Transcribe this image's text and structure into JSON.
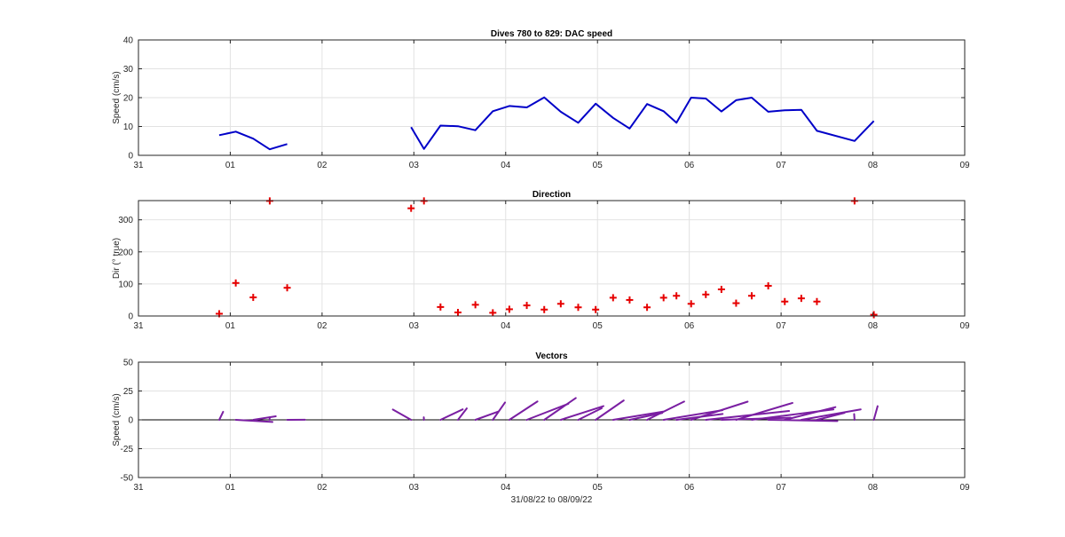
{
  "chart_data": [
    {
      "type": "line",
      "title": "Dives 780 to 829: DAC speed",
      "ylabel": "Speed (cm/s)",
      "xlabel": "",
      "xlim": [
        0,
        9
      ],
      "ylim": [
        0,
        40
      ],
      "xticks": [
        0,
        1,
        2,
        3,
        4,
        5,
        6,
        7,
        8,
        9
      ],
      "xtick_labels": [
        "31",
        "01",
        "02",
        "03",
        "04",
        "05",
        "06",
        "07",
        "08",
        "09"
      ],
      "yticks": [
        0,
        10,
        20,
        30,
        40
      ],
      "ytick_labels": [
        "0",
        "10",
        "20",
        "30",
        "40"
      ],
      "grid": true,
      "color": "#0000c8",
      "segments": [
        {
          "x": [
            0.88,
            1.06,
            1.25,
            1.43,
            1.62
          ],
          "y": [
            7.0,
            8.2,
            5.8,
            2.1,
            3.9
          ]
        },
        {
          "x": [
            2.97,
            3.11,
            3.29,
            3.48,
            3.67,
            3.86,
            4.04,
            4.23,
            4.42,
            4.6,
            4.79,
            4.98,
            5.17,
            5.35,
            5.54,
            5.72,
            5.86,
            6.02,
            6.18,
            6.35,
            6.51,
            6.68,
            6.86,
            7.04,
            7.22,
            7.39,
            7.8,
            8.01
          ],
          "y": [
            9.8,
            2.2,
            10.3,
            10.1,
            8.7,
            15.3,
            17.1,
            16.6,
            20.1,
            15.1,
            11.3,
            17.9,
            13.0,
            9.3,
            17.8,
            15.3,
            11.3,
            20.0,
            19.7,
            15.2,
            19.1,
            20.0,
            15.1,
            15.6,
            15.8,
            8.5,
            5.0,
            11.9
          ]
        }
      ]
    },
    {
      "type": "scatter",
      "title": "Direction",
      "ylabel": "Dir (° true)",
      "xlabel": "",
      "xlim": [
        0,
        9
      ],
      "ylim": [
        0,
        360
      ],
      "xticks": [
        0,
        1,
        2,
        3,
        4,
        5,
        6,
        7,
        8,
        9
      ],
      "xtick_labels": [
        "31",
        "01",
        "02",
        "03",
        "04",
        "05",
        "06",
        "07",
        "08",
        "09"
      ],
      "yticks": [
        0,
        100,
        200,
        300
      ],
      "ytick_labels": [
        "0",
        "100",
        "200",
        "300"
      ],
      "grid": true,
      "color": "#e60000",
      "marker": "+",
      "x": [
        0.88,
        1.06,
        1.25,
        1.43,
        1.62,
        2.97,
        3.11,
        3.29,
        3.48,
        3.67,
        3.86,
        4.04,
        4.23,
        4.42,
        4.6,
        4.79,
        4.98,
        5.17,
        5.35,
        5.54,
        5.72,
        5.86,
        6.02,
        6.18,
        6.35,
        6.51,
        6.68,
        6.86,
        7.04,
        7.22,
        7.39,
        7.8,
        8.01
      ],
      "y": [
        7,
        103,
        58,
        359,
        88,
        336,
        359,
        28,
        11,
        35,
        10,
        21,
        33,
        20,
        38,
        27,
        20,
        57,
        50,
        27,
        57,
        63,
        38,
        67,
        83,
        40,
        63,
        94,
        45,
        55,
        45,
        359,
        4
      ]
    },
    {
      "type": "vector",
      "title": "Vectors",
      "ylabel": "Speed (cm/s)",
      "xlabel": "31/08/22 to 08/09/22",
      "xlim": [
        0,
        9
      ],
      "ylim": [
        -50,
        50
      ],
      "xticks": [
        0,
        1,
        2,
        3,
        4,
        5,
        6,
        7,
        8,
        9
      ],
      "xtick_labels": [
        "31",
        "01",
        "02",
        "03",
        "04",
        "05",
        "06",
        "07",
        "08",
        "09"
      ],
      "yticks": [
        -50,
        -25,
        0,
        25,
        50
      ],
      "ytick_labels": [
        "-50",
        "-25",
        "0",
        "25",
        "50"
      ],
      "grid": true,
      "color": "#7a1fa2",
      "x": [
        0.88,
        1.06,
        1.25,
        1.43,
        1.62,
        2.97,
        3.11,
        3.29,
        3.48,
        3.67,
        3.86,
        4.04,
        4.23,
        4.42,
        4.6,
        4.79,
        4.98,
        5.17,
        5.35,
        5.54,
        5.72,
        5.86,
        6.02,
        6.18,
        6.35,
        6.51,
        6.68,
        6.86,
        7.04,
        7.22,
        7.39,
        7.8,
        8.01
      ],
      "speed": [
        7.0,
        8.2,
        5.8,
        2.1,
        3.9,
        9.8,
        2.2,
        10.3,
        10.1,
        8.7,
        15.3,
        17.1,
        16.6,
        20.1,
        15.1,
        11.3,
        17.9,
        13.0,
        9.3,
        17.8,
        15.3,
        11.3,
        20.0,
        19.7,
        15.2,
        19.1,
        20.0,
        15.1,
        15.6,
        15.8,
        8.5,
        5.0,
        11.9
      ],
      "direction": [
        7,
        103,
        58,
        359,
        88,
        336,
        359,
        28,
        11,
        35,
        10,
        21,
        33,
        20,
        38,
        27,
        20,
        57,
        50,
        27,
        57,
        63,
        38,
        67,
        83,
        40,
        63,
        94,
        45,
        55,
        45,
        359,
        4
      ]
    }
  ]
}
